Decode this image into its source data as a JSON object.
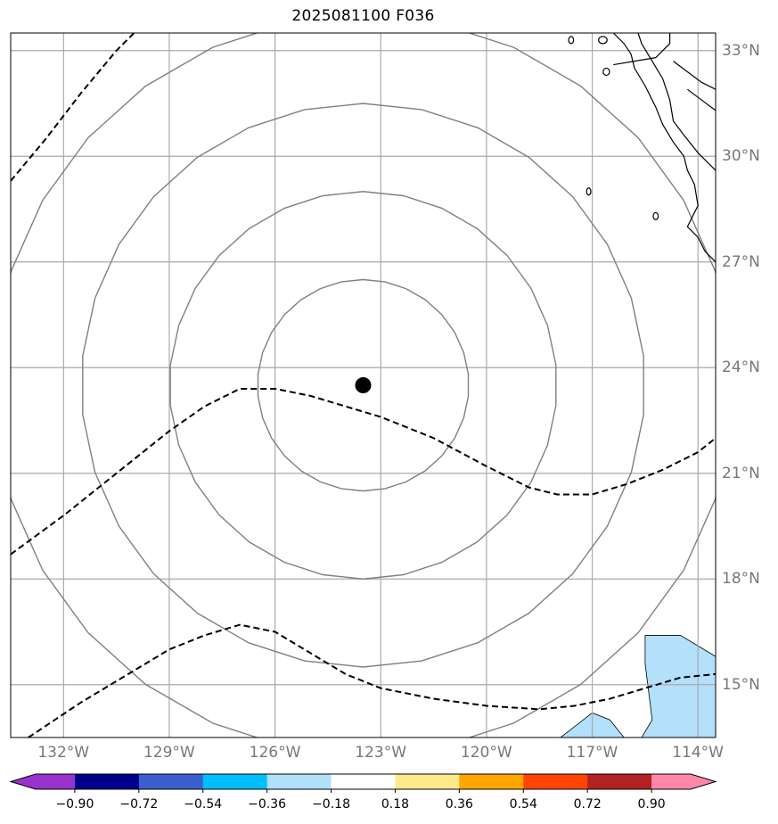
{
  "title": "2025081100 F036",
  "longitude_labels": [
    {
      "lon": -132,
      "label": "132°W"
    },
    {
      "lon": -129,
      "label": "129°W"
    },
    {
      "lon": -126,
      "label": "126°W"
    },
    {
      "lon": -123,
      "label": "123°W"
    },
    {
      "lon": -120,
      "label": "120°W"
    },
    {
      "lon": -117,
      "label": "117°W"
    },
    {
      "lon": -114,
      "label": "114°W"
    }
  ],
  "latitude_labels": [
    {
      "lat": 33,
      "label": "33°N"
    },
    {
      "lat": 30,
      "label": "30°N"
    },
    {
      "lat": 27,
      "label": "27°N"
    },
    {
      "lat": 24,
      "label": "24°N"
    },
    {
      "lat": 21,
      "label": "21°N"
    },
    {
      "lat": 18,
      "label": "18°N"
    },
    {
      "lat": 15,
      "label": "15°N"
    }
  ],
  "extent": {
    "lon_min": -133.5,
    "lon_max": -113.5,
    "lat_min": 13.5,
    "lat_max": 33.5
  },
  "storm_center": {
    "lon": -123.5,
    "lat": 23.5
  },
  "range_ring_radii_deg": [
    3.0,
    5.5,
    8.0,
    10.5
  ],
  "colorbar": {
    "colors": [
      "#9932cc",
      "#00008b",
      "#3a5fcd",
      "#00bfff",
      "#b0e0fa",
      "#ffffff",
      "#ffe98a",
      "#ffa500",
      "#ff4500",
      "#b22222",
      "#ff88aa"
    ],
    "ticks": [
      "−0.90",
      "−0.72",
      "−0.54",
      "−0.36",
      "−0.18",
      "0.18",
      "0.36",
      "0.54",
      "0.72",
      "0.90"
    ]
  },
  "colors": {
    "grid": "#aaaaaa",
    "ring": "#808080",
    "coast": "#000000",
    "shade": "#b3e0fb"
  }
}
